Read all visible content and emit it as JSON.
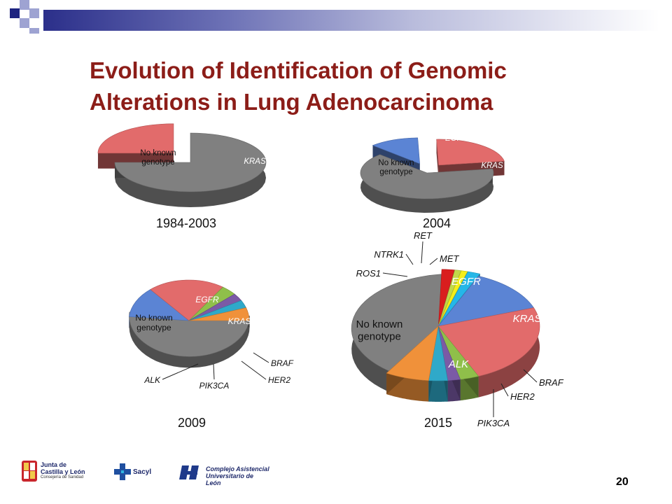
{
  "slide": {
    "title_line1": "Evolution of Identification of Genomic",
    "title_line2": "Alterations in Lung Adenocarcinoma",
    "page_number": "20"
  },
  "footer": {
    "logo1_line1": "Junta de",
    "logo1_line2": "Castilla y León",
    "logo1_line3": "Consejería de Sanidad",
    "logo2_text": "Sacyl",
    "logo3_line1": "Complejo Asistencial",
    "logo3_line2": "Universitario de León"
  },
  "colors": {
    "title": "#8c1d18",
    "no_known": "#808080",
    "EGFR": "#5b84d4",
    "KRAS": "#e26b6b",
    "BRAF": "#8fbf4a",
    "HER2": "#7b5aa6",
    "PIK3CA": "#2fa9c9",
    "ALK": "#f0913a",
    "ROS1": "#d91e1e",
    "NTRK1": "#c2d84a",
    "RET": "#f3ee1a",
    "MET": "#25b7e8"
  },
  "chart_data": [
    {
      "type": "pie",
      "title": "1984-2003",
      "slices": [
        {
          "label": "No known genotype",
          "value": 75,
          "color": "no_known"
        },
        {
          "label": "KRAS",
          "value": 25,
          "color": "KRAS"
        }
      ]
    },
    {
      "type": "pie",
      "title": "2004",
      "slices": [
        {
          "label": "No known genotype",
          "value": 65,
          "color": "no_known"
        },
        {
          "label": "EGFR",
          "value": 12,
          "color": "EGFR"
        },
        {
          "label": "KRAS",
          "value": 23,
          "color": "KRAS"
        }
      ]
    },
    {
      "type": "pie",
      "title": "2009",
      "slices": [
        {
          "label": "No known genotype",
          "value": 50,
          "color": "no_known"
        },
        {
          "label": "EGFR",
          "value": 12,
          "color": "EGFR"
        },
        {
          "label": "KRAS",
          "value": 20,
          "color": "KRAS"
        },
        {
          "label": "BRAF",
          "value": 4,
          "color": "BRAF"
        },
        {
          "label": "HER2",
          "value": 3,
          "color": "HER2"
        },
        {
          "label": "PIK3CA",
          "value": 3,
          "color": "PIK3CA"
        },
        {
          "label": "ALK",
          "value": 5,
          "color": "ALK"
        }
      ]
    },
    {
      "type": "pie",
      "title": "2015",
      "slices": [
        {
          "label": "No known genotype",
          "value": 42,
          "color": "no_known"
        },
        {
          "label": "ROS1",
          "value": 2,
          "color": "ROS1"
        },
        {
          "label": "NTRK1",
          "value": 1,
          "color": "NTRK1"
        },
        {
          "label": "RET",
          "value": 1,
          "color": "RET"
        },
        {
          "label": "MET",
          "value": 2,
          "color": "MET"
        },
        {
          "label": "EGFR",
          "value": 13,
          "color": "EGFR"
        },
        {
          "label": "KRAS",
          "value": 24,
          "color": "KRAS"
        },
        {
          "label": "BRAF",
          "value": 3,
          "color": "BRAF"
        },
        {
          "label": "HER2",
          "value": 2,
          "color": "HER2"
        },
        {
          "label": "PIK3CA",
          "value": 3,
          "color": "PIK3CA"
        },
        {
          "label": "ALK",
          "value": 7,
          "color": "ALK"
        }
      ]
    }
  ]
}
